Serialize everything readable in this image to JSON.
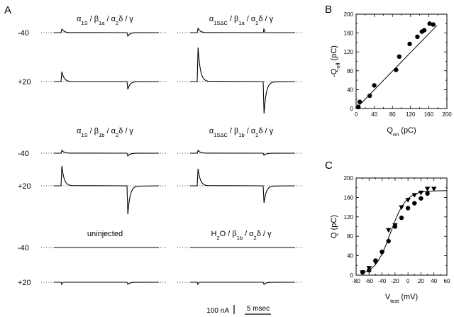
{
  "panel_letters": [
    "A",
    "B",
    "C"
  ],
  "panel_a": {
    "voltage_labels": [
      "-40",
      "+20"
    ],
    "conditions": [
      {
        "title_parts": [
          "α",
          "1S",
          " / β",
          "1a",
          " / α",
          "2",
          "δ / γ"
        ]
      },
      {
        "title_parts": [
          "α",
          "1SΔC",
          " / β",
          "1a",
          " / α",
          "2",
          "δ / γ"
        ]
      },
      {
        "title_parts": [
          "α",
          "1S",
          " / β",
          "1b",
          " / α",
          "2",
          "δ / γ"
        ]
      },
      {
        "title_parts": [
          "α",
          "1SΔC",
          " / β",
          "1b",
          " / α",
          "2",
          "δ / γ"
        ]
      },
      {
        "title_parts": [
          "uninjected"
        ]
      },
      {
        "title_parts": [
          "H",
          "2",
          "O / β",
          "1b",
          " / α",
          "2",
          "δ / γ"
        ]
      }
    ],
    "scale_bars": {
      "current": "100 nA",
      "time": "5 msec"
    }
  },
  "chart_data": [
    {
      "type": "scatter",
      "panel": "B",
      "xlabel_parts": [
        "Q",
        "on",
        " (pC)"
      ],
      "ylabel_parts": [
        "-Q",
        "off",
        " (pC)"
      ],
      "xlim": [
        0,
        200
      ],
      "ylim": [
        0,
        200
      ],
      "xticks": [
        0,
        20,
        40,
        60,
        80,
        100,
        120,
        140,
        160,
        180,
        200
      ],
      "yticks": [
        0,
        20,
        40,
        60,
        80,
        100,
        120,
        140,
        160,
        180,
        200
      ],
      "xticklabels": [
        "0",
        "40",
        "80",
        "120",
        "160",
        "200"
      ],
      "yticklabels": [
        "0",
        "40",
        "80",
        "120",
        "160",
        "200"
      ],
      "series": [
        {
          "marker": "circle",
          "x": [
            5,
            8,
            30,
            40,
            88,
            95,
            118,
            135,
            145,
            150,
            162,
            170
          ],
          "y": [
            3,
            14,
            27,
            49,
            82,
            110,
            137,
            152,
            163,
            166,
            180,
            178
          ]
        },
        {
          "marker": "triangle",
          "x": [
            4
          ],
          "y": [
            4
          ]
        }
      ],
      "fit_line": {
        "x": [
          0,
          178
        ],
        "y": [
          0,
          176
        ]
      }
    },
    {
      "type": "scatter",
      "panel": "C",
      "xlabel_parts": [
        "V",
        "test",
        " (mV)"
      ],
      "ylabel_parts": [
        "Q (pC)"
      ],
      "xlim": [
        -80,
        60
      ],
      "ylim": [
        0,
        200
      ],
      "xticks": [
        -80,
        -70,
        -60,
        -50,
        -40,
        -30,
        -20,
        -10,
        0,
        10,
        20,
        30,
        40,
        50,
        60
      ],
      "yticks": [
        0,
        20,
        40,
        60,
        80,
        100,
        120,
        140,
        160,
        180,
        200
      ],
      "xticklabels": [
        "-80",
        "-60",
        "-40",
        "-20",
        "0",
        "20",
        "40",
        "60"
      ],
      "yticklabels": [
        "0",
        "40",
        "80",
        "120",
        "160",
        "200"
      ],
      "series": [
        {
          "marker": "circle",
          "x": [
            -70,
            -60,
            -50,
            -40,
            -30,
            -20,
            -10,
            0,
            10,
            20,
            30
          ],
          "y": [
            6,
            10,
            30,
            48,
            70,
            100,
            118,
            138,
            148,
            158,
            168
          ]
        },
        {
          "marker": "triangle",
          "x": [
            -70,
            -60,
            -50,
            -40,
            -30,
            -20,
            -10,
            0,
            10,
            20,
            30,
            40
          ],
          "y": [
            6,
            15,
            26,
            46,
            93,
            103,
            140,
            155,
            165,
            170,
            178,
            178
          ]
        }
      ],
      "fit_curve": {
        "qmax": 174,
        "v_half": -27,
        "k": 12
      }
    }
  ]
}
